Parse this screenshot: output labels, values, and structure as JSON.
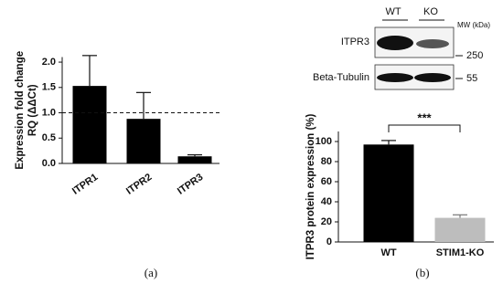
{
  "chart_data": [
    {
      "type": "bar",
      "y_label": [
        "Expression fold change",
        "RQ (ΔΔCt)"
      ],
      "categories": [
        "ITPR1",
        "ITPR2",
        "ITPR3"
      ],
      "values": [
        1.53,
        0.88,
        0.14
      ],
      "errors": [
        0.6,
        0.52,
        0.03
      ],
      "colors": [
        "#000000",
        "#000000",
        "#000000"
      ],
      "ylim": [
        0,
        2.1
      ],
      "yticks": [
        {
          "value": 0,
          "label": "0.0"
        },
        0.5,
        {
          "value": 1,
          "label": "1.0"
        },
        1.5,
        {
          "value": 2,
          "label": "2.0"
        }
      ],
      "reference_line": 1,
      "panel_label": "(a)"
    },
    {
      "type": "bar",
      "y_label": [
        "ITPR3 protein expression (%)"
      ],
      "categories": [
        "WT",
        "STIM1-KO"
      ],
      "values": [
        97,
        24
      ],
      "errors": [
        4,
        3
      ],
      "colors": [
        "#000000",
        "#bdbdbd"
      ],
      "ylim": [
        0,
        110
      ],
      "yticks": [
        0,
        20,
        40,
        60,
        80,
        100
      ],
      "significance": "***",
      "panel_label": "(b)"
    }
  ],
  "blot": {
    "lanes": [
      "WT",
      "KO"
    ],
    "mw_label": "MW (kDa)",
    "rows": [
      "ITPR3",
      "Beta-Tubulin"
    ],
    "markers": [
      "250",
      "55"
    ]
  }
}
